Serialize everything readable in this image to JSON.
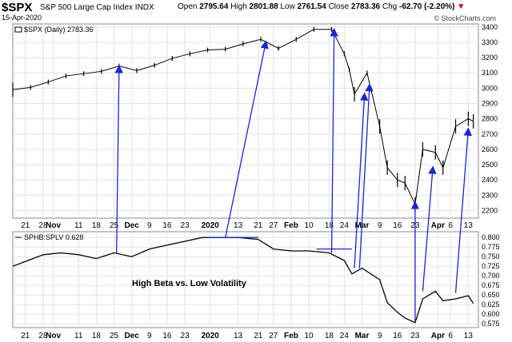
{
  "header": {
    "symbol": "$SPX",
    "index_name": "S&P 500 Large Cap Index",
    "exchange": "INDX",
    "date": "15-Apr-2020",
    "open_label": "Open",
    "open": "2795.64",
    "high_label": "High",
    "high": "2801.88",
    "low_label": "Low",
    "low": "2761.54",
    "close_label": "Close",
    "close": "2783.36",
    "chg_label": "Chg",
    "chg": "-62.70 (-2.20%)",
    "chg_icon": "down-triangle-icon",
    "watermark": "© StockCharts.com"
  },
  "chart_data": [
    {
      "type": "ohlc",
      "legend": "$SPX (Daily) 2783.36",
      "ylim": [
        2150,
        3420
      ],
      "yticks": [
        2200,
        2300,
        2400,
        2500,
        2600,
        2700,
        2800,
        2900,
        3000,
        3100,
        3200,
        3300,
        3400
      ],
      "x_tick_labels": [
        "21",
        "28",
        "Nov",
        "11",
        "18",
        "25",
        "Dec",
        "9",
        "16",
        "23",
        "2020",
        "13",
        "21",
        "27",
        "Feb",
        "10",
        "18",
        "24",
        "Mar",
        "9",
        "16",
        "23",
        "Apr",
        "6",
        "13"
      ],
      "x_tick_dates": [
        "2019-10-21",
        "2019-10-28",
        "2019-11-01",
        "2019-11-11",
        "2019-11-18",
        "2019-11-25",
        "2019-12-02",
        "2019-12-09",
        "2019-12-16",
        "2019-12-23",
        "2020-01-02",
        "2020-01-13",
        "2020-01-21",
        "2020-01-27",
        "2020-02-03",
        "2020-02-10",
        "2020-02-18",
        "2020-02-24",
        "2020-03-02",
        "2020-03-09",
        "2020-03-16",
        "2020-03-23",
        "2020-04-01",
        "2020-04-06",
        "2020-04-13"
      ],
      "series": [
        {
          "name": "$SPX",
          "x": [
            "2019-10-16",
            "2019-10-23",
            "2019-10-30",
            "2019-11-06",
            "2019-11-13",
            "2019-11-20",
            "2019-11-27",
            "2019-12-04",
            "2019-12-11",
            "2019-12-18",
            "2019-12-25",
            "2020-01-01",
            "2020-01-08",
            "2020-01-15",
            "2020-01-22",
            "2020-01-29",
            "2020-02-05",
            "2020-02-12",
            "2020-02-19",
            "2020-02-24",
            "2020-02-26",
            "2020-02-28",
            "2020-03-04",
            "2020-03-09",
            "2020-03-12",
            "2020-03-16",
            "2020-03-19",
            "2020-03-23",
            "2020-03-26",
            "2020-03-31",
            "2020-04-03",
            "2020-04-08",
            "2020-04-13",
            "2020-04-15"
          ],
          "values": [
            2990,
            3005,
            3040,
            3080,
            3095,
            3110,
            3145,
            3115,
            3150,
            3195,
            3225,
            3250,
            3255,
            3290,
            3320,
            3260,
            3320,
            3385,
            3385,
            3225,
            3120,
            2960,
            3100,
            2750,
            2480,
            2400,
            2380,
            2240,
            2600,
            2580,
            2480,
            2750,
            2800,
            2783
          ]
        }
      ],
      "annotation_arrows": 8
    },
    {
      "type": "line",
      "legend": "SPHB:SPLV 0.628",
      "annotation": "High Beta vs. Low Volatility",
      "ylim": [
        0.565,
        0.815
      ],
      "yticks": [
        0.575,
        0.6,
        0.625,
        0.65,
        0.675,
        0.7,
        0.725,
        0.75,
        0.775,
        0.8
      ],
      "ytick_labels": [
        "0.575",
        "0.600",
        "0.625",
        "0.650",
        "0.675",
        "0.700",
        "0.725",
        "0.750",
        "0.775",
        "0.800"
      ],
      "x_tick_labels": [
        "21",
        "28",
        "Nov",
        "11",
        "18",
        "25",
        "Dec",
        "9",
        "16",
        "23",
        "2020",
        "13",
        "21",
        "27",
        "Feb",
        "10",
        "18",
        "24",
        "Mar",
        "9",
        "16",
        "23",
        "Apr",
        "6",
        "13"
      ],
      "series": [
        {
          "name": "SPHB:SPLV",
          "x": [
            "2019-10-16",
            "2019-10-22",
            "2019-10-28",
            "2019-11-04",
            "2019-11-11",
            "2019-11-18",
            "2019-11-25",
            "2019-12-02",
            "2019-12-09",
            "2019-12-16",
            "2019-12-23",
            "2019-12-30",
            "2020-01-06",
            "2020-01-13",
            "2020-01-21",
            "2020-01-27",
            "2020-02-03",
            "2020-02-10",
            "2020-02-18",
            "2020-02-24",
            "2020-02-27",
            "2020-03-02",
            "2020-03-09",
            "2020-03-12",
            "2020-03-16",
            "2020-03-19",
            "2020-03-23",
            "2020-03-26",
            "2020-03-31",
            "2020-04-03",
            "2020-04-08",
            "2020-04-13",
            "2020-04-15"
          ],
          "values": [
            0.725,
            0.74,
            0.755,
            0.76,
            0.755,
            0.745,
            0.76,
            0.75,
            0.77,
            0.78,
            0.79,
            0.8,
            0.8,
            0.8,
            0.795,
            0.77,
            0.765,
            0.765,
            0.76,
            0.74,
            0.705,
            0.72,
            0.69,
            0.63,
            0.605,
            0.59,
            0.578,
            0.64,
            0.66,
            0.635,
            0.64,
            0.648,
            0.628
          ]
        }
      ],
      "annotation_arrows": 3
    }
  ]
}
